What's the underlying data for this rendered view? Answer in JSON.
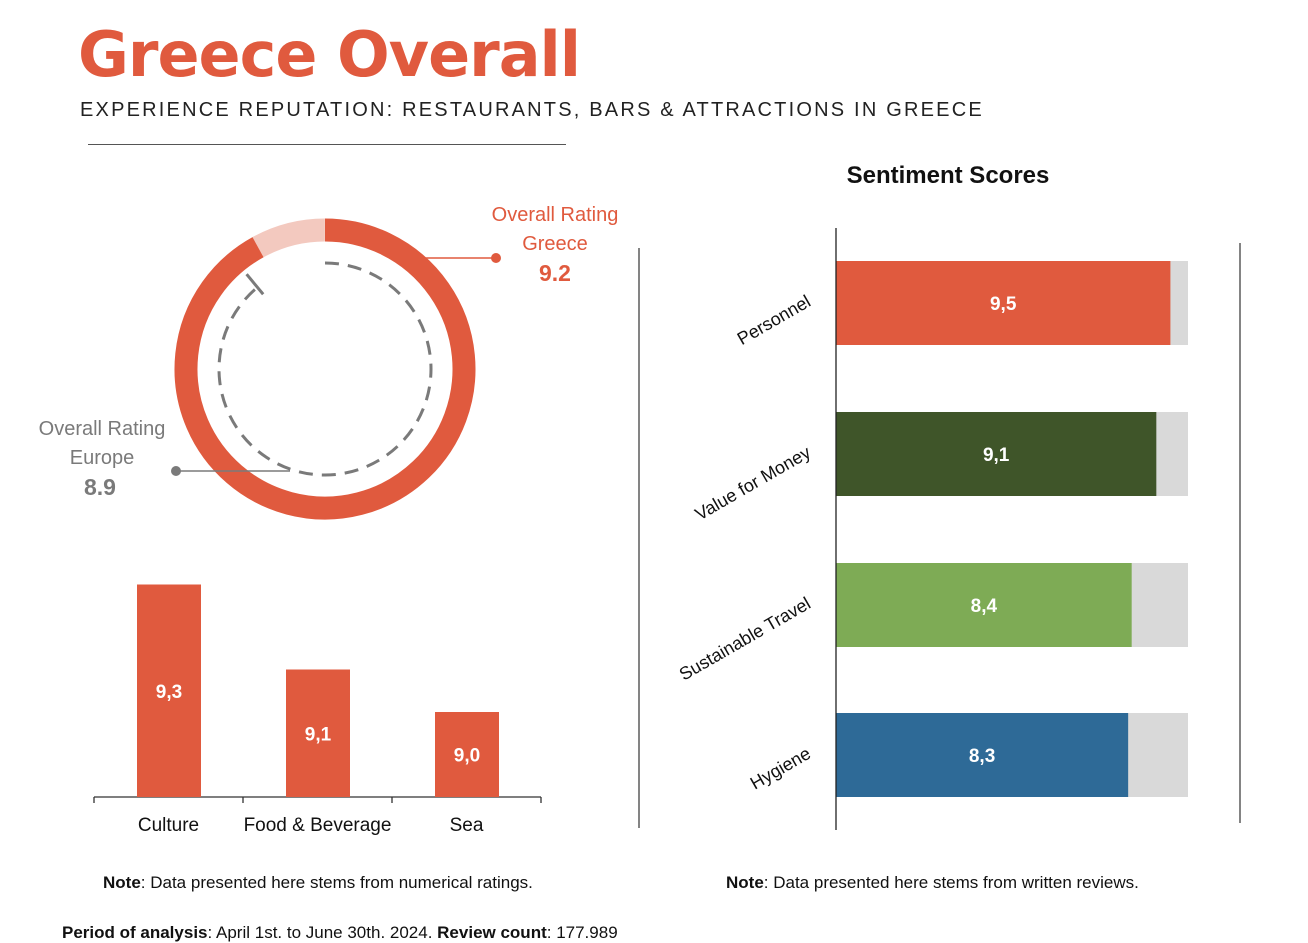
{
  "header": {
    "title": "Greece Overall",
    "subtitle": "EXPERIENCE REPUTATION: RESTAURANTS, BARS & ATTRACTIONS IN GREECE"
  },
  "donut": {
    "greece_label_1": "Overall Rating",
    "greece_label_2": "Greece",
    "greece_value": "9.2",
    "europe_label_1": "Overall Rating",
    "europe_label_2": "Europe",
    "europe_value": "8.9",
    "scale_max": 10,
    "greece": 9.2,
    "europe": 8.9,
    "colors": {
      "greece": "#e05a3e",
      "remainder": "#f3c9bf",
      "europe": "#7a7a7a"
    }
  },
  "chart_data": [
    {
      "type": "bar",
      "categories": [
        "Culture",
        "Food & Beverage",
        "Sea"
      ],
      "values": [
        9.3,
        9.1,
        9.0
      ],
      "data_labels": [
        "9,3",
        "9,1",
        "9,0"
      ],
      "ylim": [
        8.8,
        9.3
      ],
      "color": "#e05a3e",
      "xlabel": "",
      "ylabel": ""
    },
    {
      "type": "bar",
      "orientation": "horizontal",
      "title": "Sentiment Scores",
      "categories": [
        "Personnel",
        "Value for Money",
        "Sustainable Travel",
        "Hygiene"
      ],
      "values": [
        9.5,
        9.1,
        8.4,
        8.3
      ],
      "data_labels": [
        "9,5",
        "9,1",
        "8,4",
        "8,3"
      ],
      "xlim": [
        0,
        10
      ],
      "colors": [
        "#e05a3e",
        "#3f5529",
        "#7eab55",
        "#2e6a97"
      ],
      "background_color": "#d9d9d9"
    }
  ],
  "notes": {
    "left_bold": "Note",
    "left_text": ": Data presented here stems from numerical ratings.",
    "right_bold": "Note",
    "right_text": ": Data presented here stems from written reviews.",
    "period_bold": "Period of analysis",
    "period_text": ": April 1st. to June 30th. 2024. ",
    "count_bold": "Review count",
    "count_text": ": 177.989"
  }
}
